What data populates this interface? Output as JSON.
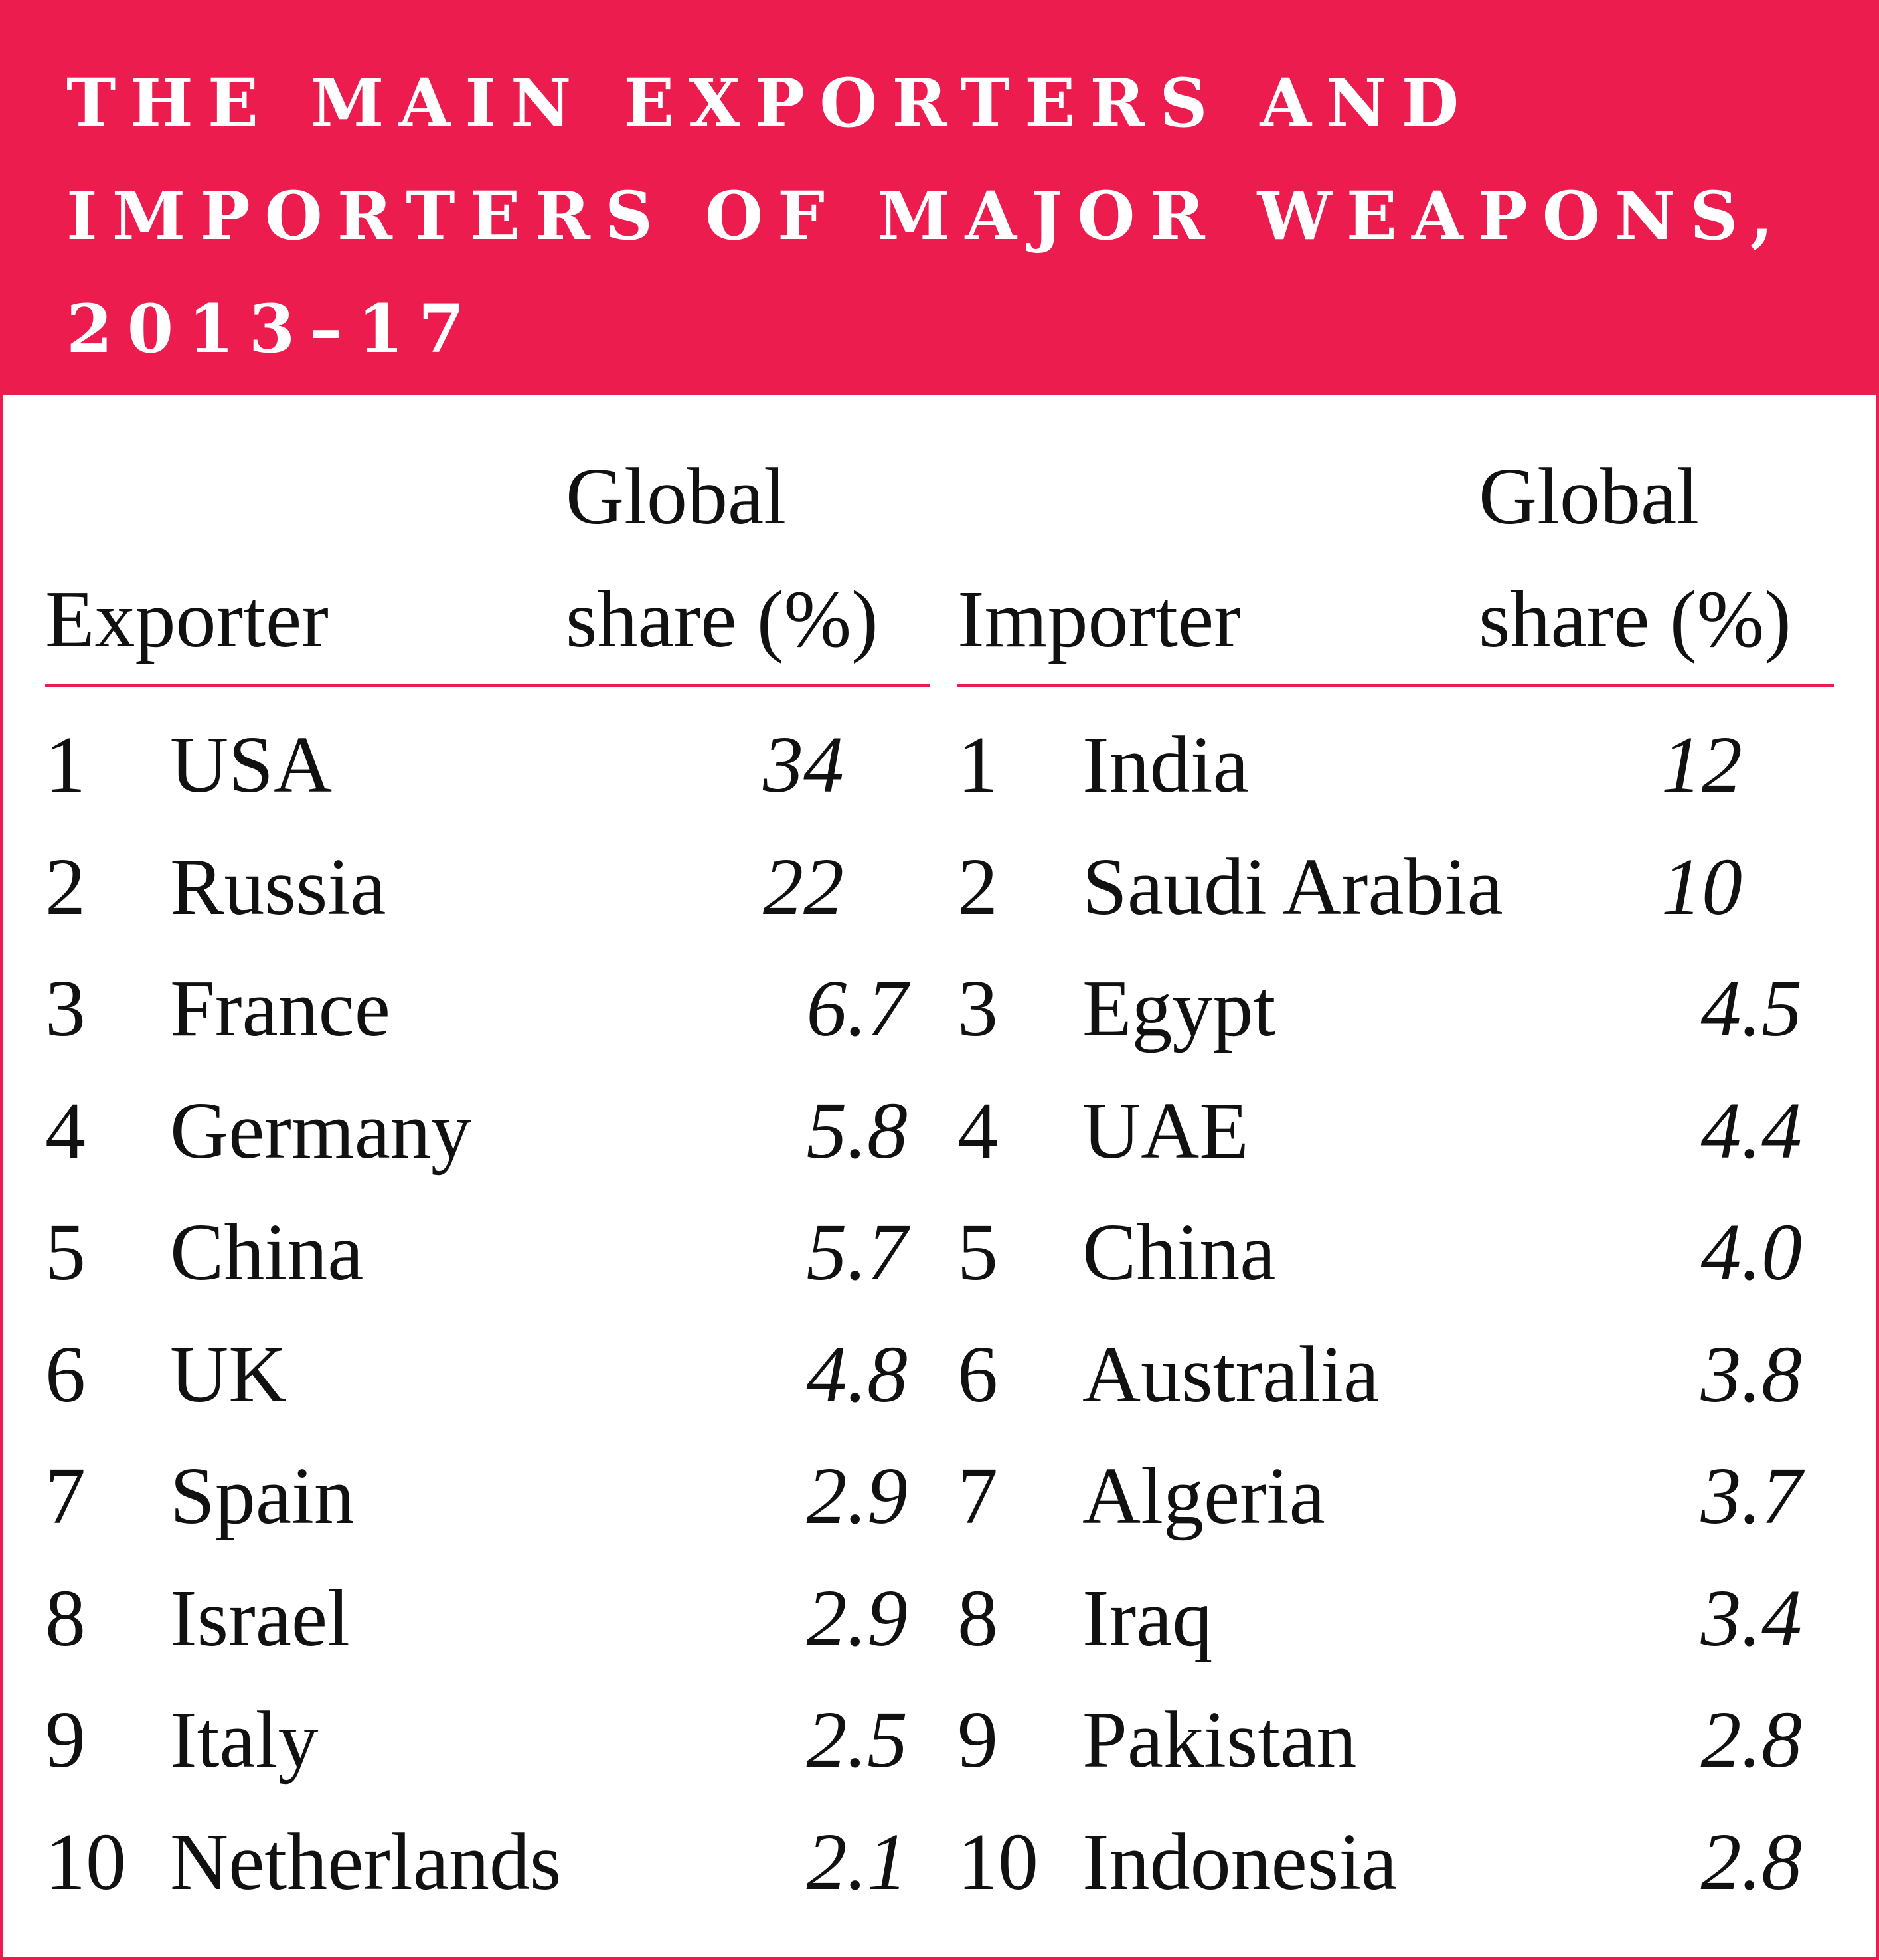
{
  "title": "THE MAIN EXPORTERS AND IMPORTERS OF MAJOR WEAPONS, 2013–17",
  "colors": {
    "accent": "#ed1c4f",
    "text": "#111111",
    "background": "#ffffff"
  },
  "exporters": {
    "header_label": "Exporter",
    "header_share_line1": "Global",
    "header_share_line2": "share (%)",
    "rows": [
      {
        "rank": "1",
        "name": "USA",
        "share": "34"
      },
      {
        "rank": "2",
        "name": "Russia",
        "share": "22"
      },
      {
        "rank": "3",
        "name": "France",
        "share": "6.7"
      },
      {
        "rank": "4",
        "name": "Germany",
        "share": "5.8"
      },
      {
        "rank": "5",
        "name": "China",
        "share": "5.7"
      },
      {
        "rank": "6",
        "name": "UK",
        "share": "4.8"
      },
      {
        "rank": "7",
        "name": "Spain",
        "share": "2.9"
      },
      {
        "rank": "8",
        "name": "Israel",
        "share": "2.9"
      },
      {
        "rank": "9",
        "name": "Italy",
        "share": "2.5"
      },
      {
        "rank": "10",
        "name": "Netherlands",
        "share": "2.1"
      }
    ]
  },
  "importers": {
    "header_label": "Importer",
    "header_share_line1": "Global",
    "header_share_line2": "share (%)",
    "rows": [
      {
        "rank": "1",
        "name": "India",
        "share": "12"
      },
      {
        "rank": "2",
        "name": "Saudi Arabia",
        "share": "10"
      },
      {
        "rank": "3",
        "name": "Egypt",
        "share": "4.5"
      },
      {
        "rank": "4",
        "name": "UAE",
        "share": "4.4"
      },
      {
        "rank": "5",
        "name": "China",
        "share": "4.0"
      },
      {
        "rank": "6",
        "name": "Australia",
        "share": "3.8"
      },
      {
        "rank": "7",
        "name": "Algeria",
        "share": "3.7"
      },
      {
        "rank": "8",
        "name": "Iraq",
        "share": "3.4"
      },
      {
        "rank": "9",
        "name": "Pakistan",
        "share": "2.8"
      },
      {
        "rank": "10",
        "name": "Indonesia",
        "share": "2.8"
      }
    ]
  }
}
